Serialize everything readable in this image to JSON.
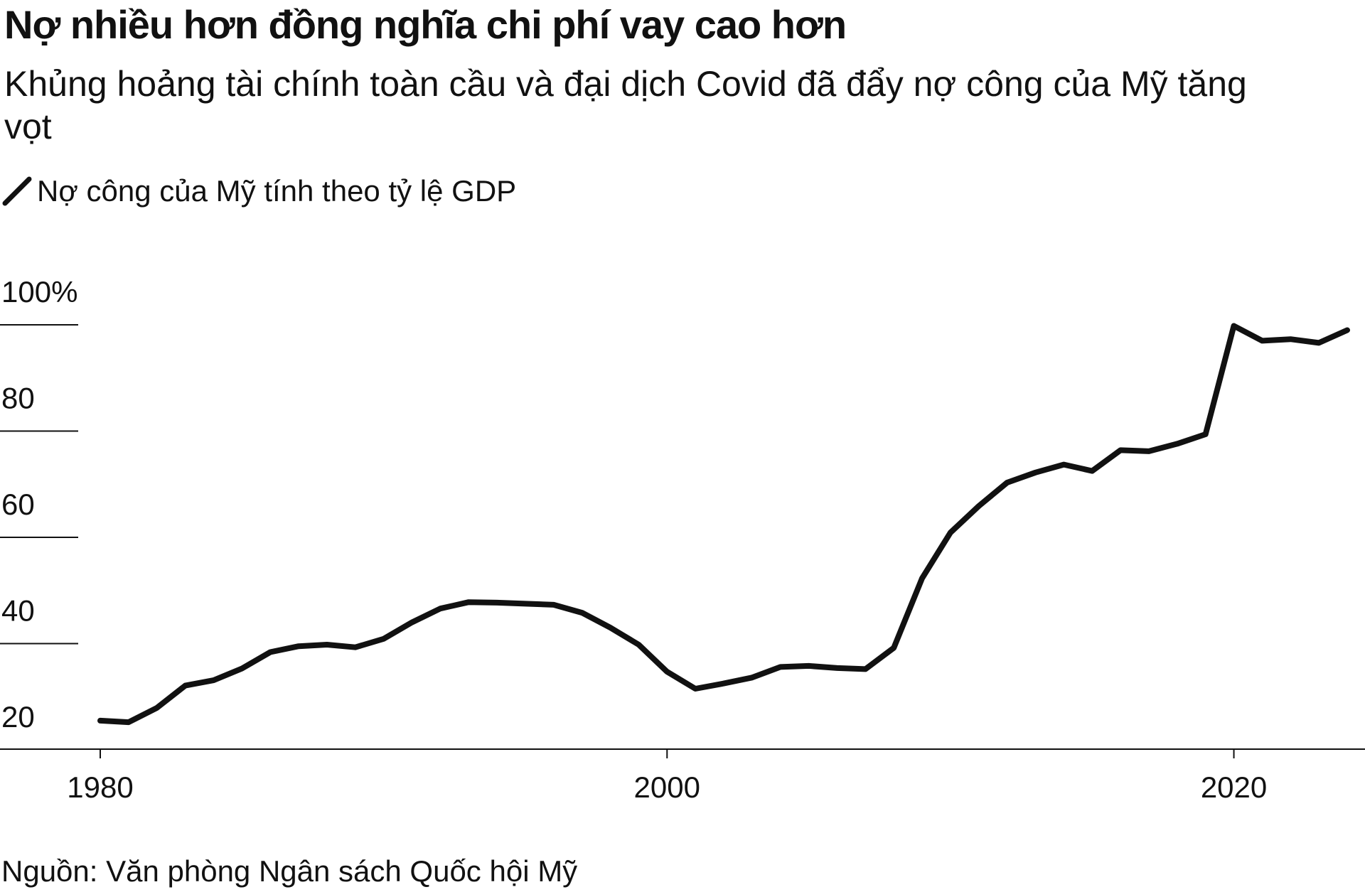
{
  "title": "Nợ nhiều hơn đồng nghĩa chi phí vay cao hơn",
  "subtitle": "Khủng hoảng tài chính toàn cầu và đại dịch Covid đã đẩy nợ công của Mỹ tăng vọt",
  "legend": {
    "label": "Nợ công của Mỹ tính theo tỷ lệ GDP",
    "color": "#111111"
  },
  "source": "Nguồn: Văn phòng Ngân sách Quốc hội Mỹ",
  "chart_data": {
    "type": "line",
    "title": "Nợ nhiều hơn đồng nghĩa chi phí vay cao hơn",
    "xlabel": "",
    "ylabel": "",
    "xlim": [
      1980,
      2024
    ],
    "ylim": [
      20,
      100
    ],
    "y_ticks": [
      {
        "value": 100,
        "label": "100%"
      },
      {
        "value": 80,
        "label": "80"
      },
      {
        "value": 60,
        "label": "60"
      },
      {
        "value": 40,
        "label": "40"
      },
      {
        "value": 20,
        "label": "20"
      }
    ],
    "x_ticks": [
      {
        "value": 1980,
        "label": "1980"
      },
      {
        "value": 2000,
        "label": "2000"
      },
      {
        "value": 2020,
        "label": "2020"
      }
    ],
    "grid": false,
    "series": [
      {
        "name": "Nợ công của Mỹ tính theo tỷ lệ GDP",
        "color": "#111111",
        "x": [
          1980,
          1981,
          1982,
          1983,
          1984,
          1985,
          1986,
          1987,
          1988,
          1989,
          1990,
          1991,
          1992,
          1993,
          1994,
          1995,
          1996,
          1997,
          1998,
          1999,
          2000,
          2001,
          2002,
          2003,
          2004,
          2005,
          2006,
          2007,
          2008,
          2009,
          2010,
          2011,
          2012,
          2013,
          2014,
          2015,
          2016,
          2017,
          2018,
          2019,
          2020,
          2021,
          2022,
          2023,
          2024
        ],
        "y": [
          25.5,
          25.2,
          27.9,
          32.1,
          33.1,
          35.3,
          38.4,
          39.5,
          39.8,
          39.3,
          40.9,
          44.0,
          46.6,
          47.8,
          47.7,
          47.5,
          47.3,
          45.8,
          43.0,
          39.8,
          34.7,
          31.5,
          32.5,
          33.6,
          35.6,
          35.8,
          35.4,
          35.2,
          39.2,
          52.3,
          60.9,
          65.9,
          70.3,
          72.2,
          73.7,
          72.5,
          76.4,
          76.2,
          77.6,
          79.4,
          99.8,
          97.0,
          97.3,
          96.6,
          99.0
        ]
      }
    ]
  }
}
